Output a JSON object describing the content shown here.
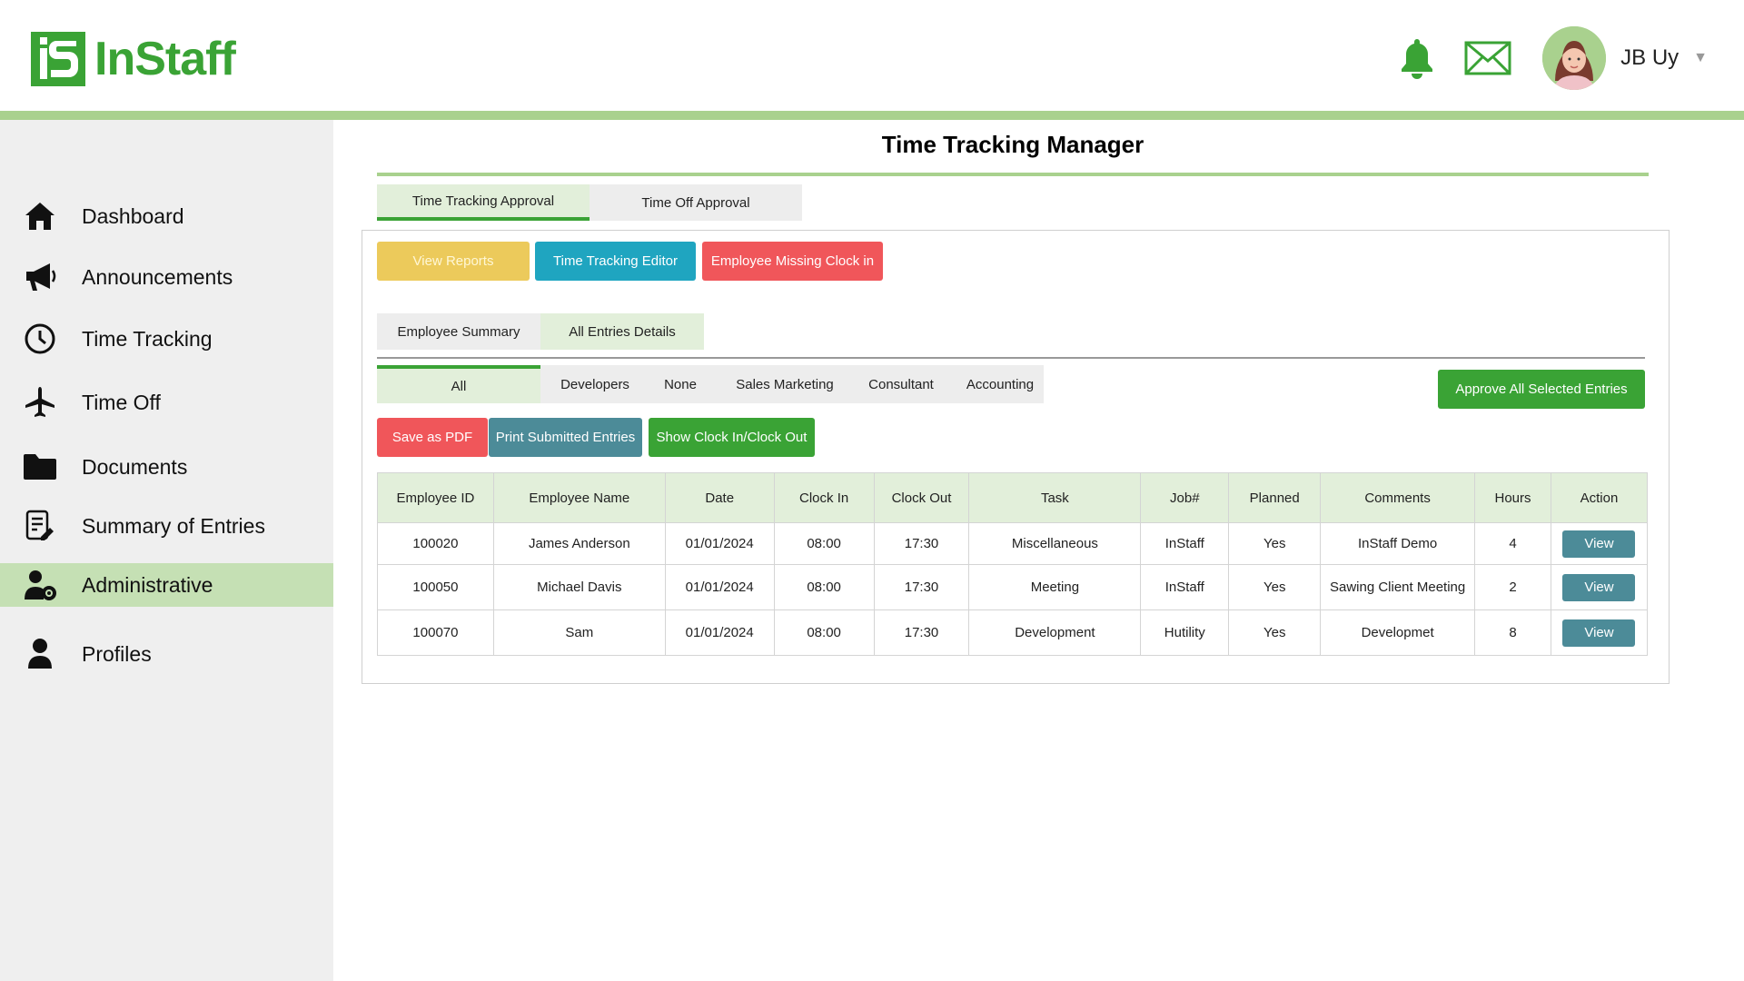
{
  "app": {
    "logo_text": "InStaff",
    "brand_color": "#3aa335",
    "accent_light": "#a9d18e"
  },
  "header": {
    "user_name": "JB Uy"
  },
  "sidebar": {
    "items": [
      {
        "label": "Dashboard",
        "icon": "home-icon"
      },
      {
        "label": "Announcements",
        "icon": "megaphone-icon"
      },
      {
        "label": "Time Tracking",
        "icon": "clock-icon"
      },
      {
        "label": "Time Off",
        "icon": "airplane-icon"
      },
      {
        "label": "Documents",
        "icon": "folder-icon"
      },
      {
        "label": "Summary of Entries",
        "icon": "document-edit-icon"
      },
      {
        "label": "Administrative",
        "icon": "user-gear-icon",
        "active": true
      },
      {
        "label": "Profiles",
        "icon": "user-icon"
      }
    ]
  },
  "main": {
    "title": "Time Tracking Manager",
    "tabs": [
      "Time Tracking Approval",
      "Time Off Approval"
    ],
    "action_buttons": {
      "view_reports": "View Reports",
      "time_tracking_editor": "Time Tracking Editor",
      "employee_missing_clock_in": "Employee Missing Clock in"
    },
    "subtabs": [
      "Employee Summary",
      "All Entries Details"
    ],
    "filters": [
      "All",
      "Developers",
      "None",
      "Sales Marketing",
      "Consultant",
      "Accounting"
    ],
    "approve_all": "Approve All Selected Entries",
    "export_buttons": {
      "save_pdf": "Save as PDF",
      "print": "Print Submitted Entries",
      "show_clock": "Show Clock In/Clock Out"
    },
    "table": {
      "columns": [
        "Employee ID",
        "Employee Name",
        "Date",
        "Clock In",
        "Clock Out",
        "Task",
        "Job#",
        "Planned",
        "Comments",
        "Hours",
        "Action"
      ],
      "rows": [
        {
          "id": "100020",
          "name": "James Anderson",
          "date": "01/01/2024",
          "clock_in": "08:00",
          "clock_out": "17:30",
          "task": "Miscellaneous",
          "job": "InStaff",
          "planned": "Yes",
          "comments": "InStaff Demo",
          "hours": "4",
          "action": "View"
        },
        {
          "id": "100050",
          "name": "Michael Davis",
          "date": "01/01/2024",
          "clock_in": "08:00",
          "clock_out": "17:30",
          "task": "Meeting",
          "job": "InStaff",
          "planned": "Yes",
          "comments": "Sawing Client Meeting",
          "hours": "2",
          "action": "View"
        },
        {
          "id": "100070",
          "name": "Sam",
          "date": "01/01/2024",
          "clock_in": "08:00",
          "clock_out": "17:30",
          "task": "Development",
          "job": "Hutility",
          "planned": "Yes",
          "comments": "Developmet",
          "hours": "8",
          "action": "View"
        }
      ]
    }
  }
}
